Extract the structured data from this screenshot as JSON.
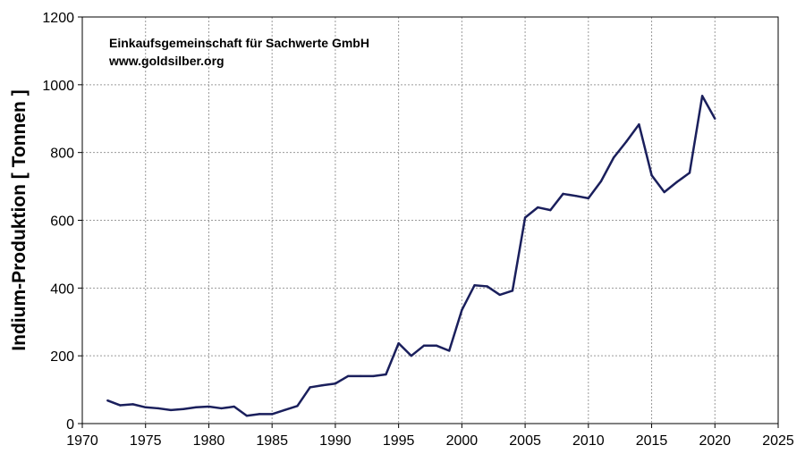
{
  "chart_data": {
    "type": "line",
    "title": "",
    "xlabel": "",
    "ylabel": "Indium-Produktion [ Tonnen ]",
    "annotations": [
      "Einkaufsgemeinschaft für Sachwerte GmbH",
      "www.goldsilber.org"
    ],
    "xlim": [
      1970,
      2025
    ],
    "ylim": [
      0,
      1200
    ],
    "xticks": [
      1970,
      1975,
      1980,
      1985,
      1990,
      1995,
      2000,
      2005,
      2010,
      2015,
      2020,
      2025
    ],
    "yticks": [
      0,
      200,
      400,
      600,
      800,
      1000,
      1200
    ],
    "grid": true,
    "line_color": "#1a1f5c",
    "series": [
      {
        "name": "Indium-Produktion",
        "x": [
          1972,
          1973,
          1974,
          1975,
          1976,
          1977,
          1978,
          1979,
          1980,
          1981,
          1982,
          1983,
          1984,
          1985,
          1986,
          1987,
          1988,
          1989,
          1990,
          1991,
          1992,
          1993,
          1994,
          1995,
          1996,
          1997,
          1998,
          1999,
          2000,
          2001,
          2002,
          2003,
          2004,
          2005,
          2006,
          2007,
          2008,
          2009,
          2010,
          2011,
          2012,
          2013,
          2014,
          2015,
          2016,
          2017,
          2018,
          2019,
          2020
        ],
        "values": [
          68,
          54,
          57,
          48,
          45,
          40,
          43,
          48,
          50,
          45,
          50,
          23,
          28,
          28,
          40,
          52,
          107,
          113,
          118,
          140,
          140,
          140,
          145,
          237,
          200,
          230,
          230,
          215,
          335,
          408,
          405,
          380,
          392,
          608,
          638,
          630,
          678,
          672,
          665,
          715,
          785,
          832,
          883,
          733,
          683,
          713,
          740,
          967,
          900
        ]
      }
    ]
  }
}
